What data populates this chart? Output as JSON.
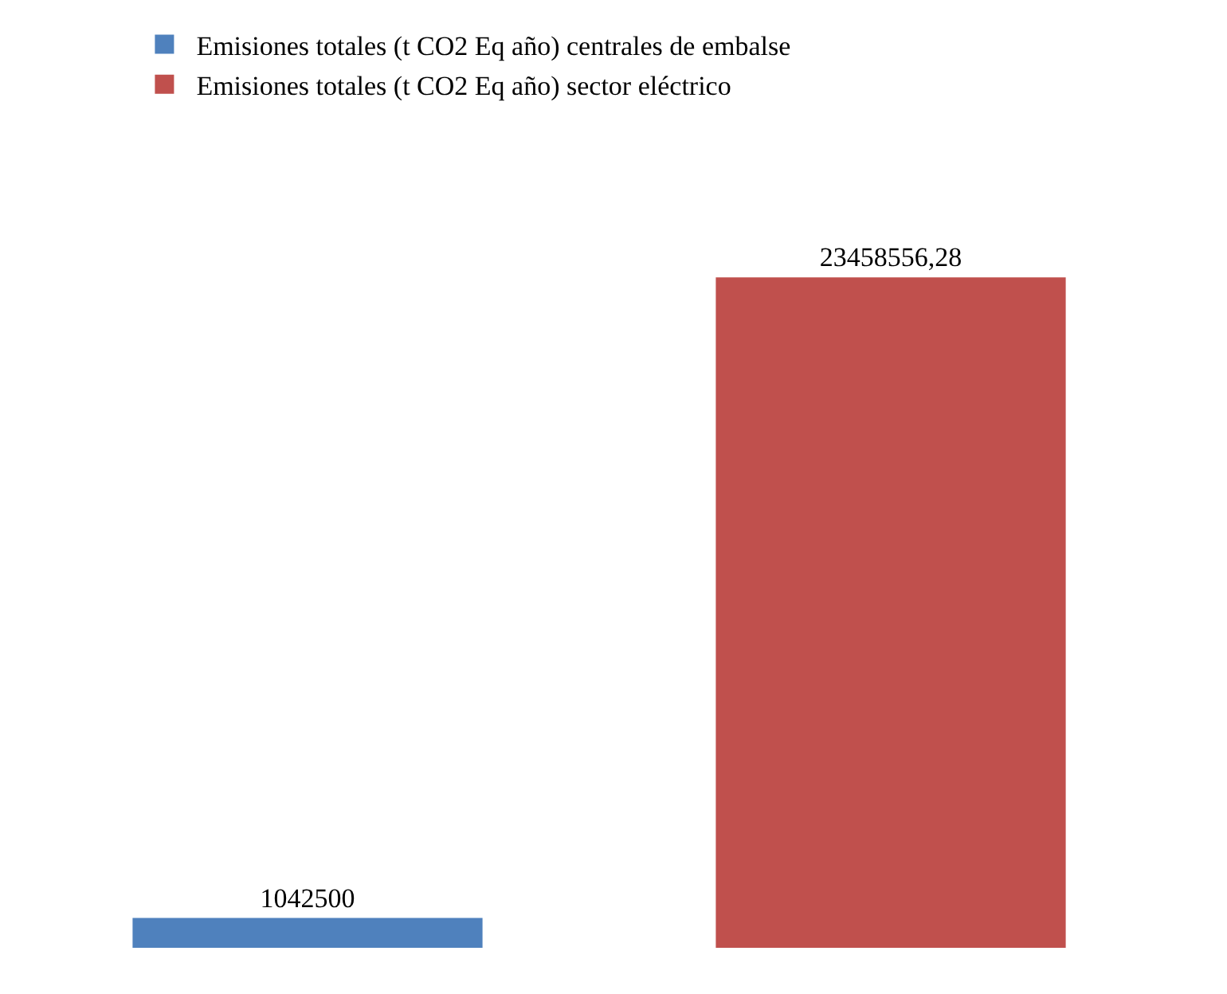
{
  "chart_data": {
    "type": "bar",
    "categories": [
      null
    ],
    "series": [
      {
        "name": "Emisiones totales (t CO2 Eq año) centrales de embalse",
        "color": "#4f81bd",
        "values": [
          1042500
        ],
        "value_labels": [
          "1042500"
        ]
      },
      {
        "name": "Emisiones totales (t CO2 Eq año) sector eléctrico",
        "color": "#c0504d",
        "values": [
          23458556.28
        ],
        "value_labels": [
          "23458556,28"
        ]
      }
    ],
    "legend": "top"
  }
}
